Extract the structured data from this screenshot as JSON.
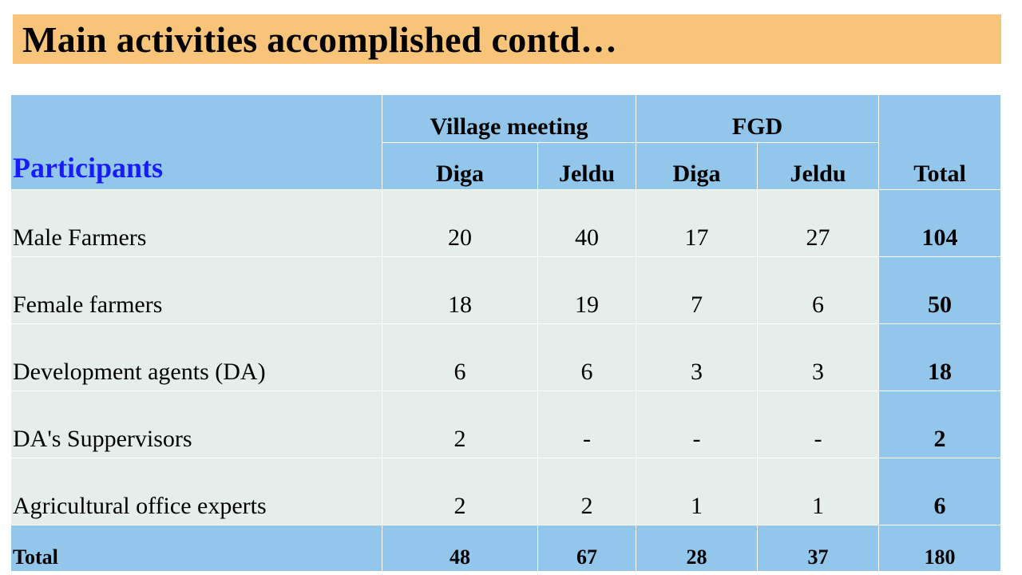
{
  "slide": {
    "title": "Main activities accomplished contd…"
  },
  "table": {
    "participants_header": "Participants",
    "group_headers": [
      "Village meeting",
      "FGD"
    ],
    "sub_headers": [
      "Diga",
      "Jeldu",
      "Diga",
      "Jeldu"
    ],
    "total_header": "Total",
    "rows": [
      {
        "label": "Male Farmers",
        "values": [
          "20",
          "40",
          "17",
          "27"
        ],
        "total": "104"
      },
      {
        "label": "Female  farmers",
        "values": [
          "18",
          "19",
          "7",
          "6"
        ],
        "total": "50"
      },
      {
        "label": "Development  agents (DA)",
        "values": [
          "6",
          "6",
          "3",
          "3"
        ],
        "total": "18"
      },
      {
        "label": "DA's Suppervisors",
        "values": [
          "2",
          "-",
          "-",
          "-"
        ],
        "total": "2"
      },
      {
        "label": "Agricultural  office experts",
        "values": [
          "2",
          "2",
          "1",
          "1"
        ],
        "total": "6"
      }
    ],
    "footer": {
      "label": "Total",
      "values": [
        "48",
        "67",
        "28",
        "37"
      ],
      "total": "180"
    }
  },
  "colors": {
    "title_bg": "#f8c47a",
    "header_bg": "#92c6ea",
    "body_bg": "#e6eeec",
    "participants_text": "#1a1aff"
  }
}
